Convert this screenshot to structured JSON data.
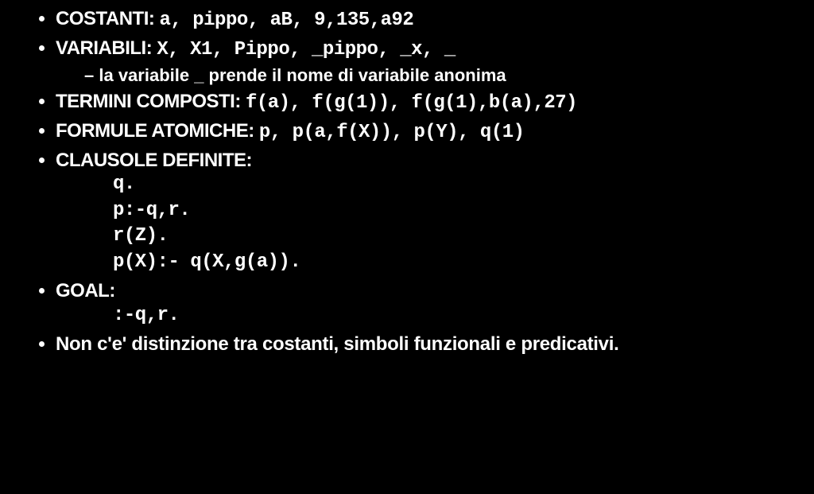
{
  "items": {
    "costanti": {
      "label": "COSTANTI: ",
      "code": "a, pippo, aB, 9,135,a92"
    },
    "variabili": {
      "label": "VARIABILI: ",
      "code": "X, X1, Pippo, _pippo, _x, _",
      "sub": "la variabile _ prende il nome di variabile anonima"
    },
    "termini": {
      "label": "TERMINI COMPOSTI: ",
      "code": "f(a), f(g(1)), f(g(1),b(a),27)"
    },
    "formule": {
      "label": "FORMULE ATOMICHE: ",
      "code": "p, p(a,f(X)), p(Y), q(1)"
    },
    "clausole": {
      "label": "CLAUSOLE DEFINITE:",
      "lines": {
        "l1": "q.",
        "l2": "p:-q,r.",
        "l3": "r(Z).",
        "l4": "p(X):- q(X,g(a))."
      }
    },
    "goal": {
      "label": "GOAL:",
      "lines": {
        "l1": ":-q,r."
      }
    },
    "final": "Non c'e' distinzione tra costanti, simboli funzionali e predicativi."
  },
  "style": {
    "bg": "#000000",
    "fg": "#ffffff",
    "label_font": "Arial",
    "code_font": "Courier New",
    "label_size_pt": 24,
    "code_size_pt": 24,
    "weight": 900
  }
}
